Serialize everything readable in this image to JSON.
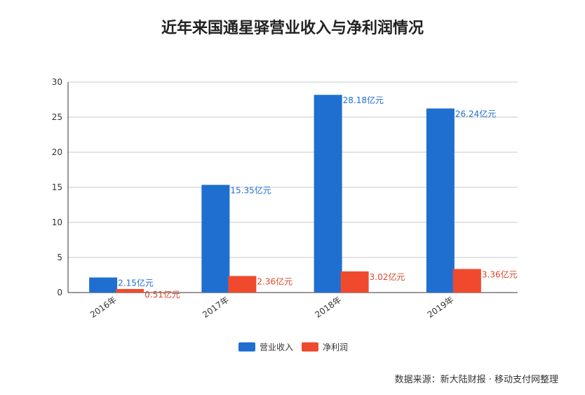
{
  "title": "近年来国通星驿营业收入与净利润情况",
  "source": "数据来源：新大陆财报 · 移动支付网整理",
  "chart_data": {
    "type": "bar",
    "categories": [
      "2016年",
      "2017年",
      "2018年",
      "2019年"
    ],
    "series": [
      {
        "name": "营业收入",
        "values": [
          2.15,
          15.35,
          28.18,
          26.24
        ],
        "labels": [
          "2.15亿元",
          "15.35亿元",
          "28.18亿元",
          "26.24亿元"
        ],
        "color": "#1f6fd1"
      },
      {
        "name": "净利润",
        "values": [
          0.51,
          2.36,
          3.02,
          3.36
        ],
        "labels": [
          "0.51亿元",
          "2.36亿元",
          "3.02亿元",
          "3.36亿元"
        ],
        "color": "#f04a2e"
      }
    ],
    "ylim": [
      0,
      30
    ],
    "yticks": [
      0,
      5,
      10,
      15,
      20,
      25,
      30
    ],
    "grid": true,
    "legend_position": "bottom-center"
  }
}
